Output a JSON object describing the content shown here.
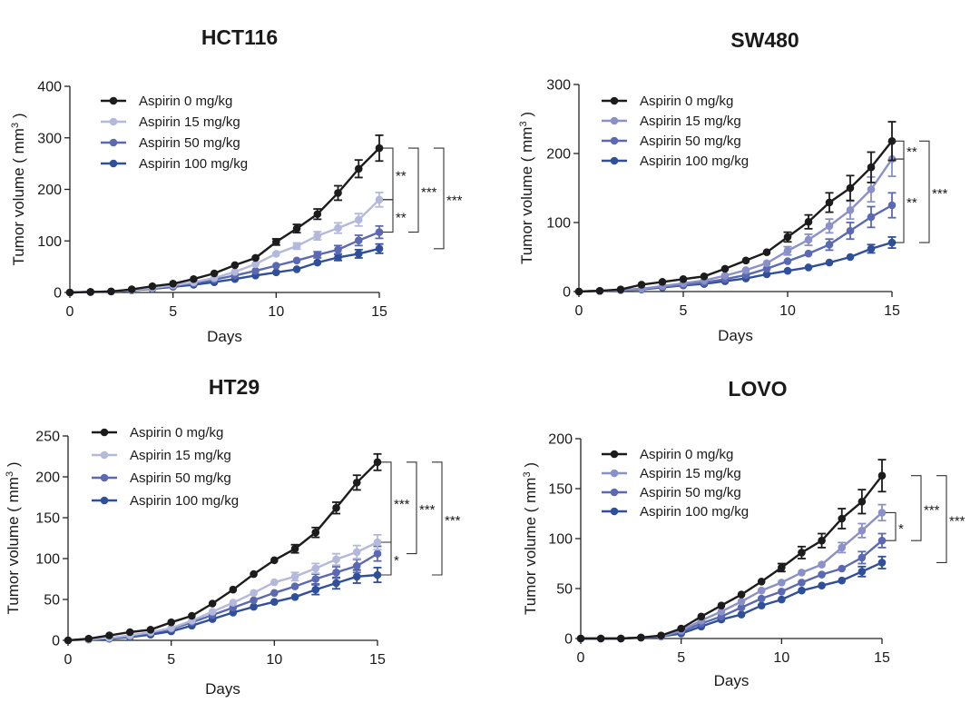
{
  "chart_data": [
    {
      "type": "line",
      "title": "HCT116",
      "xlabel": "Days",
      "ylabel": "Tumor volume ( mm",
      "ylabel_sup": "3",
      "ylabel_end": " )",
      "xlim": [
        0,
        15
      ],
      "ylim": [
        0,
        400
      ],
      "xticks": [
        0,
        5,
        10,
        15
      ],
      "yticks": [
        0,
        100,
        200,
        300,
        400
      ],
      "grid": false,
      "legend_position": "top-left",
      "x": [
        0,
        1,
        2,
        3,
        4,
        5,
        6,
        7,
        8,
        9,
        10,
        11,
        12,
        13,
        14,
        15
      ],
      "series": [
        {
          "name": "Aspirin 0 mg/kg",
          "color": "#1c1c1c",
          "values": [
            0,
            1,
            2,
            6,
            12,
            17,
            26,
            37,
            53,
            67,
            98,
            124,
            152,
            193,
            240,
            280
          ],
          "errors": [
            0,
            0,
            0,
            0,
            0,
            0,
            0,
            0,
            0,
            0,
            6,
            8,
            10,
            14,
            17,
            25
          ]
        },
        {
          "name": "Aspirin 15 mg/kg",
          "color": "#b4b8da",
          "values": [
            0,
            1,
            2,
            5,
            9,
            14,
            20,
            28,
            40,
            55,
            75,
            90,
            110,
            125,
            141,
            180
          ],
          "errors": [
            0,
            0,
            0,
            0,
            0,
            0,
            0,
            0,
            0,
            0,
            0,
            6,
            8,
            10,
            12,
            14
          ]
        },
        {
          "name": "Aspirin 50 mg/kg",
          "color": "#5b69b3",
          "values": [
            0,
            1,
            2,
            4,
            8,
            12,
            18,
            25,
            33,
            42,
            52,
            62,
            73,
            83,
            101,
            117
          ],
          "errors": [
            0,
            0,
            0,
            0,
            0,
            0,
            0,
            0,
            0,
            0,
            0,
            0,
            6,
            8,
            10,
            12
          ]
        },
        {
          "name": "Aspirin 100 mg/kg",
          "color": "#2f4f9a",
          "values": [
            0,
            1,
            2,
            4,
            7,
            11,
            15,
            20,
            26,
            33,
            39,
            45,
            58,
            68,
            75,
            85
          ],
          "errors": [
            0,
            0,
            0,
            0,
            0,
            0,
            0,
            0,
            0,
            0,
            0,
            0,
            0,
            6,
            8,
            9
          ]
        }
      ],
      "annotations": [
        {
          "text": "**",
          "from": 280,
          "to": 180,
          "level": 1
        },
        {
          "text": "**",
          "from": 180,
          "to": 117,
          "level": 1
        },
        {
          "text": "***",
          "from": 280,
          "to": 117,
          "level": 2
        },
        {
          "text": "***",
          "from": 280,
          "to": 85,
          "level": 3
        }
      ]
    },
    {
      "type": "line",
      "title": "SW480",
      "xlabel": "Days",
      "ylabel": "Tumor volume ( mm",
      "ylabel_sup": "3",
      "ylabel_end": " )",
      "xlim": [
        0,
        15
      ],
      "ylim": [
        0,
        300
      ],
      "xticks": [
        0,
        5,
        10,
        15
      ],
      "yticks": [
        0,
        100,
        200,
        300
      ],
      "grid": false,
      "legend_position": "top-left",
      "x": [
        0,
        1,
        2,
        3,
        4,
        5,
        6,
        7,
        8,
        9,
        10,
        11,
        12,
        13,
        14,
        15
      ],
      "series": [
        {
          "name": "Aspirin 0 mg/kg",
          "color": "#1c1c1c",
          "values": [
            0,
            1,
            3,
            10,
            14,
            18,
            22,
            33,
            45,
            57,
            79,
            101,
            129,
            150,
            180,
            218
          ],
          "errors": [
            0,
            0,
            0,
            0,
            0,
            0,
            0,
            0,
            0,
            0,
            7,
            10,
            14,
            18,
            22,
            28
          ]
        },
        {
          "name": "Aspirin 15 mg/kg",
          "color": "#8a90c8",
          "values": [
            0,
            1,
            2,
            4,
            8,
            12,
            16,
            23,
            31,
            41,
            59,
            75,
            95,
            118,
            148,
            192
          ],
          "errors": [
            0,
            0,
            0,
            0,
            0,
            0,
            0,
            0,
            0,
            0,
            6,
            8,
            10,
            13,
            18,
            25
          ]
        },
        {
          "name": "Aspirin 50 mg/kg",
          "color": "#5b69b3",
          "values": [
            0,
            1,
            2,
            4,
            7,
            10,
            13,
            18,
            24,
            33,
            44,
            55,
            68,
            88,
            108,
            125
          ],
          "errors": [
            0,
            0,
            0,
            0,
            0,
            0,
            0,
            0,
            0,
            0,
            0,
            0,
            8,
            12,
            15,
            18
          ]
        },
        {
          "name": "Aspirin 100 mg/kg",
          "color": "#2f4f9a",
          "values": [
            0,
            1,
            2,
            3,
            6,
            9,
            11,
            15,
            19,
            25,
            30,
            35,
            42,
            50,
            62,
            71
          ],
          "errors": [
            0,
            0,
            0,
            0,
            0,
            0,
            0,
            0,
            0,
            0,
            0,
            0,
            0,
            0,
            6,
            8
          ]
        }
      ],
      "annotations": [
        {
          "text": "**",
          "from": 218,
          "to": 192,
          "level": 1
        },
        {
          "text": "**",
          "from": 192,
          "to": 71,
          "level": 1
        },
        {
          "text": "***",
          "from": 218,
          "to": 71,
          "level": 2
        }
      ]
    },
    {
      "type": "line",
      "title": "HT29",
      "xlabel": "Days",
      "ylabel": "Tumor volume ( mm",
      "ylabel_sup": "3",
      "ylabel_end": " )",
      "xlim": [
        0,
        15
      ],
      "ylim": [
        0,
        250
      ],
      "xticks": [
        0,
        5,
        10,
        15
      ],
      "yticks": [
        0,
        50,
        100,
        150,
        200,
        250
      ],
      "grid": false,
      "legend_position": "top-left",
      "x": [
        0,
        1,
        2,
        3,
        4,
        5,
        6,
        7,
        8,
        9,
        10,
        11,
        12,
        13,
        14,
        15
      ],
      "series": [
        {
          "name": "Aspirin 0 mg/kg",
          "color": "#1c1c1c",
          "values": [
            0,
            2,
            6,
            10,
            13,
            22,
            30,
            45,
            62,
            81,
            98,
            112,
            132,
            162,
            193,
            218
          ],
          "errors": [
            0,
            0,
            0,
            0,
            0,
            0,
            0,
            0,
            0,
            0,
            0,
            5,
            6,
            7,
            9,
            10
          ]
        },
        {
          "name": "Aspirin 15 mg/kg",
          "color": "#b4b8da",
          "values": [
            0,
            1,
            3,
            6,
            10,
            15,
            24,
            35,
            46,
            58,
            71,
            78,
            88,
            99,
            108,
            120
          ],
          "errors": [
            0,
            0,
            0,
            0,
            0,
            0,
            0,
            0,
            0,
            0,
            0,
            5,
            6,
            7,
            8,
            9
          ]
        },
        {
          "name": "Aspirin 50 mg/kg",
          "color": "#5b69b3",
          "values": [
            0,
            1,
            3,
            5,
            9,
            14,
            22,
            31,
            40,
            49,
            58,
            66,
            75,
            83,
            91,
            106
          ],
          "errors": [
            0,
            0,
            0,
            0,
            0,
            0,
            0,
            0,
            0,
            0,
            0,
            0,
            6,
            7,
            8,
            9
          ]
        },
        {
          "name": "Aspirin 100 mg/kg",
          "color": "#2f4f9a",
          "values": [
            0,
            1,
            2,
            4,
            7,
            11,
            18,
            26,
            34,
            41,
            47,
            53,
            62,
            70,
            78,
            80
          ],
          "errors": [
            0,
            0,
            0,
            0,
            0,
            0,
            0,
            0,
            0,
            0,
            0,
            0,
            6,
            7,
            8,
            9
          ]
        }
      ],
      "annotations": [
        {
          "text": "***",
          "from": 218,
          "to": 120,
          "level": 1
        },
        {
          "text": "*",
          "from": 120,
          "to": 80,
          "level": 1
        },
        {
          "text": "***",
          "from": 218,
          "to": 106,
          "level": 2
        },
        {
          "text": "***",
          "from": 218,
          "to": 80,
          "level": 3
        }
      ]
    },
    {
      "type": "line",
      "title": "LOVO",
      "xlabel": "Days",
      "ylabel": "Tumor volume ( mm",
      "ylabel_sup": "3",
      "ylabel_end": " )",
      "xlim": [
        0,
        15
      ],
      "ylim": [
        0,
        200
      ],
      "xticks": [
        0,
        5,
        10,
        15
      ],
      "yticks": [
        0,
        50,
        100,
        150,
        200
      ],
      "grid": false,
      "legend_position": "top-left",
      "x": [
        0,
        1,
        2,
        3,
        4,
        5,
        6,
        7,
        8,
        9,
        10,
        11,
        12,
        13,
        14,
        15
      ],
      "series": [
        {
          "name": "Aspirin 0 mg/kg",
          "color": "#1c1c1c",
          "values": [
            0,
            0,
            0,
            1,
            3,
            10,
            22,
            33,
            44,
            57,
            71,
            86,
            98,
            120,
            137,
            163
          ],
          "errors": [
            0,
            0,
            0,
            0,
            0,
            0,
            0,
            0,
            0,
            0,
            4,
            6,
            7,
            10,
            12,
            16
          ]
        },
        {
          "name": "Aspirin 15 mg/kg",
          "color": "#8a90c8",
          "values": [
            0,
            0,
            0,
            1,
            2,
            8,
            18,
            27,
            37,
            48,
            56,
            66,
            74,
            91,
            108,
            126
          ],
          "errors": [
            0,
            0,
            0,
            0,
            0,
            0,
            0,
            0,
            0,
            0,
            0,
            0,
            0,
            5,
            7,
            8
          ]
        },
        {
          "name": "Aspirin 50 mg/kg",
          "color": "#5b69b3",
          "values": [
            0,
            0,
            0,
            1,
            2,
            7,
            15,
            22,
            31,
            40,
            47,
            56,
            64,
            70,
            81,
            98
          ],
          "errors": [
            0,
            0,
            0,
            0,
            0,
            0,
            0,
            0,
            0,
            0,
            0,
            0,
            0,
            0,
            6,
            7
          ]
        },
        {
          "name": "Aspirin 100 mg/kg",
          "color": "#2f4f9a",
          "values": [
            0,
            0,
            0,
            1,
            2,
            5,
            12,
            19,
            24,
            33,
            39,
            48,
            53,
            58,
            67,
            76
          ],
          "errors": [
            0,
            0,
            0,
            0,
            0,
            0,
            0,
            0,
            0,
            0,
            0,
            0,
            0,
            0,
            5,
            6
          ]
        }
      ],
      "annotations": [
        {
          "text": "*",
          "from": 126,
          "to": 98,
          "level": 1
        },
        {
          "text": "***",
          "from": 163,
          "to": 98,
          "level": 2
        },
        {
          "text": "***",
          "from": 163,
          "to": 76,
          "level": 3
        }
      ]
    }
  ]
}
